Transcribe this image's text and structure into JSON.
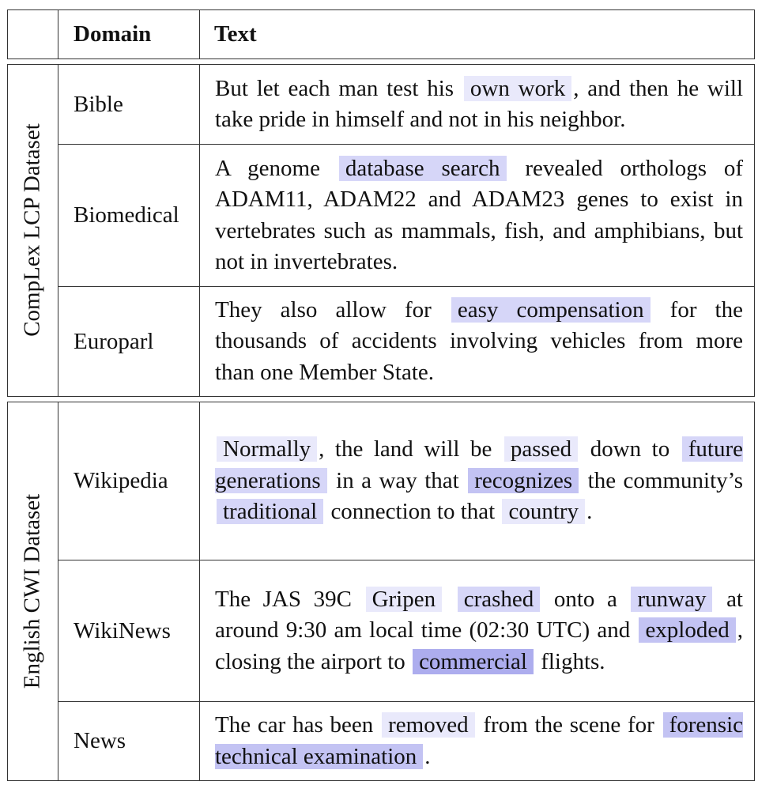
{
  "header": {
    "domain": "Domain",
    "text": "Text"
  },
  "groups": [
    {
      "label": "CompLex LCP Dataset"
    },
    {
      "label": "English CWI Dataset"
    }
  ],
  "rows": [
    {
      "domain": "Bible",
      "segments": [
        {
          "t": "But let each man test his "
        },
        {
          "t": "own work",
          "h": 1
        },
        {
          "t": ", and then he will take pride in himself and not in his neighbor."
        }
      ]
    },
    {
      "domain": "Biomedical",
      "segments": [
        {
          "t": "A genome "
        },
        {
          "t": "database search",
          "h": 2
        },
        {
          "t": " revealed orthologs of ADAM11, ADAM22 and ADAM23 genes to exist in vertebrates such as mammals, fish, and amphibians, but not in invertebrates."
        }
      ]
    },
    {
      "domain": "Europarl",
      "segments": [
        {
          "t": "They also allow for "
        },
        {
          "t": "easy compensation",
          "h": 2
        },
        {
          "t": " for the thousands of accidents involving vehicles from more than one Member State."
        }
      ]
    },
    {
      "domain": "Wikipedia",
      "segments": [
        {
          "t": "Normally",
          "h": 1
        },
        {
          "t": ", the land will be "
        },
        {
          "t": "passed",
          "h": 1
        },
        {
          "t": " down to "
        },
        {
          "t": "future generations",
          "h": 2
        },
        {
          "t": " in a way that "
        },
        {
          "t": "recognizes",
          "h": 3
        },
        {
          "t": " the community’s "
        },
        {
          "t": "traditional",
          "h": 2
        },
        {
          "t": " connection to that "
        },
        {
          "t": "country",
          "h": 1
        },
        {
          "t": "."
        }
      ]
    },
    {
      "domain": "WikiNews",
      "segments": [
        {
          "t": "The JAS 39C "
        },
        {
          "t": "Gripen",
          "h": 1
        },
        {
          "t": " "
        },
        {
          "t": "crashed",
          "h": 2
        },
        {
          "t": " onto a "
        },
        {
          "t": "runway",
          "h": 2
        },
        {
          "t": " at around 9:30 am local time (02:30 UTC) and "
        },
        {
          "t": "exploded",
          "h": 3
        },
        {
          "t": ", closing the airport to "
        },
        {
          "t": "commercial",
          "h": 4
        },
        {
          "t": " flights."
        }
      ]
    },
    {
      "domain": "News",
      "segments": [
        {
          "t": "The car has been "
        },
        {
          "t": "removed",
          "h": 1
        },
        {
          "t": " from the scene for "
        },
        {
          "t": "forensic technical examination",
          "h": 3
        },
        {
          "t": "."
        }
      ]
    }
  ]
}
